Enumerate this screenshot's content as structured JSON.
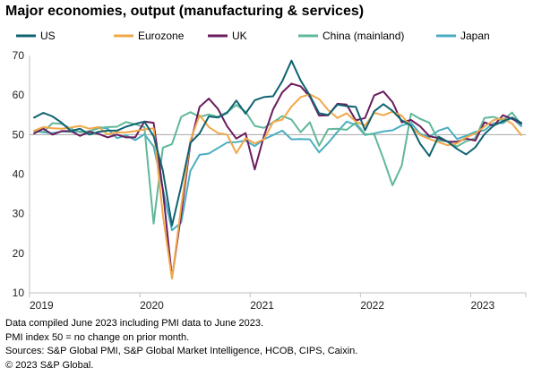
{
  "chart_data": {
    "type": "line",
    "title": "Major economies, output (manufacturing & services)",
    "xlabel": "",
    "ylabel": "",
    "ylim": [
      10,
      70
    ],
    "yticks": [
      10,
      20,
      30,
      40,
      50,
      60,
      70
    ],
    "reference_line": 50,
    "x_start": "2019-01",
    "x_end": "2023-06",
    "x_tick_labels": [
      "2019",
      "2020",
      "2021",
      "2022",
      "2023"
    ],
    "grid": false,
    "legend_position": "top",
    "series": [
      {
        "name": "US",
        "color": "#0f6371",
        "values": [
          54.3,
          55.5,
          54.6,
          53.0,
          50.9,
          51.5,
          50.0,
          50.7,
          51.0,
          51.0,
          52.0,
          52.7,
          53.3,
          49.6,
          40.9,
          27.0,
          37.0,
          47.9,
          50.3,
          54.6,
          54.3,
          55.5,
          58.6,
          55.3,
          58.7,
          59.5,
          59.7,
          63.5,
          68.7,
          63.7,
          59.9,
          55.4,
          55.0,
          57.6,
          57.2,
          57.0,
          51.1,
          55.9,
          57.7,
          56.0,
          53.6,
          52.3,
          47.7,
          44.6,
          49.5,
          48.2,
          46.4,
          45.0,
          46.8,
          50.1,
          52.3,
          53.4,
          54.3,
          53.0
        ]
      },
      {
        "name": "Eurozone",
        "color": "#f0a84a",
        "values": [
          51.0,
          51.9,
          51.6,
          51.5,
          51.8,
          52.2,
          51.5,
          51.9,
          50.1,
          50.6,
          50.6,
          50.9,
          51.3,
          51.6,
          29.7,
          13.6,
          31.9,
          48.5,
          54.9,
          51.9,
          50.4,
          50.0,
          45.3,
          49.1,
          47.8,
          48.8,
          53.2,
          53.8,
          57.1,
          59.5,
          60.2,
          59.0,
          56.2,
          54.2,
          55.4,
          53.3,
          52.3,
          55.5,
          54.9,
          55.8,
          54.8,
          52.0,
          49.9,
          48.9,
          48.1,
          47.3,
          47.8,
          49.3,
          50.3,
          52.0,
          53.7,
          54.1,
          52.8,
          49.9
        ]
      },
      {
        "name": "UK",
        "color": "#6b1d5e",
        "values": [
          50.3,
          51.5,
          50.0,
          50.9,
          50.9,
          49.7,
          50.7,
          50.2,
          49.3,
          50.0,
          49.3,
          49.3,
          53.3,
          53.0,
          36.0,
          13.8,
          30.0,
          47.7,
          57.0,
          59.1,
          56.5,
          52.1,
          49.0,
          50.4,
          41.2,
          49.6,
          56.4,
          60.7,
          62.9,
          62.2,
          59.6,
          54.8,
          54.9,
          57.8,
          57.6,
          53.6,
          54.2,
          59.9,
          60.9,
          58.2,
          53.1,
          53.7,
          52.1,
          49.6,
          49.1,
          48.2,
          48.2,
          49.0,
          48.5,
          53.1,
          52.2,
          54.9,
          54.0,
          52.8
        ]
      },
      {
        "name": "China (mainland)",
        "color": "#60b79a",
        "values": [
          50.9,
          50.7,
          52.9,
          52.7,
          51.5,
          50.6,
          50.9,
          51.6,
          51.9,
          52.0,
          53.2,
          52.6,
          51.9,
          27.5,
          46.7,
          47.6,
          54.5,
          55.7,
          54.5,
          55.1,
          54.5,
          55.7,
          57.5,
          55.8,
          52.2,
          51.7,
          53.1,
          54.7,
          53.8,
          50.6,
          53.1,
          47.2,
          51.4,
          51.5,
          51.2,
          53.0,
          50.1,
          50.1,
          43.9,
          37.2,
          42.2,
          55.3,
          54.0,
          53.0,
          48.5,
          48.3,
          47.0,
          48.3,
          49.1,
          54.2,
          54.5,
          53.6,
          55.6,
          52.5
        ]
      },
      {
        "name": "Japan",
        "color": "#4aaec0",
        "values": [
          50.9,
          50.6,
          50.4,
          50.8,
          50.7,
          50.8,
          50.6,
          51.9,
          51.5,
          49.1,
          49.8,
          48.6,
          50.1,
          47.0,
          36.2,
          25.8,
          27.8,
          40.8,
          44.9,
          45.2,
          46.6,
          48.0,
          48.1,
          48.5,
          47.1,
          48.8,
          49.9,
          51.0,
          48.8,
          48.9,
          48.8,
          45.5,
          47.9,
          50.7,
          53.3,
          52.5,
          49.9,
          50.3,
          50.8,
          51.1,
          52.3,
          53.0,
          50.2,
          49.4,
          51.0,
          51.8,
          48.9,
          49.7,
          50.7,
          51.1,
          52.9,
          52.9,
          54.3,
          52.1
        ]
      }
    ]
  },
  "footer": {
    "line1": "Data compiled June 2023 including PMI data to June 2023.",
    "line2": "PMI index 50 = no change on prior month.",
    "line3": "Sources: S&P Global PMI, S&P Global Market Intelligence, HCOB, CIPS, Caixin.",
    "line4": "© 2023 S&P Global."
  }
}
